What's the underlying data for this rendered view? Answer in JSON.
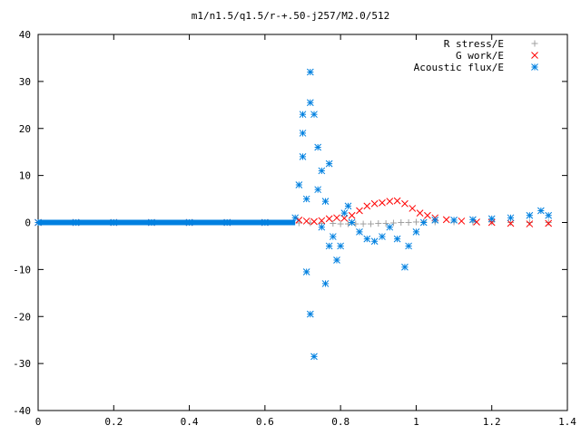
{
  "chart_data": {
    "type": "scatter",
    "title": "m1/n1.5/q1.5/r-+.50-j257/M2.0/512",
    "xlabel": "",
    "ylabel": "",
    "xlim": [
      0,
      1.4
    ],
    "ylim": [
      -40,
      40
    ],
    "x_ticks": [
      0,
      0.2,
      0.4,
      0.6,
      0.8,
      1,
      1.2,
      1.4
    ],
    "x_tick_labels": [
      "0",
      "0.2",
      "0.4",
      "0.6",
      "0.8",
      "1",
      "1.2",
      "1.4"
    ],
    "y_ticks": [
      -40,
      -30,
      -20,
      -10,
      0,
      10,
      20,
      30,
      40
    ],
    "y_tick_labels": [
      "-40",
      "-30",
      "-20",
      "-10",
      "0",
      "10",
      "20",
      "30",
      "40"
    ],
    "grid": false,
    "legend_position": "top-right",
    "series": [
      {
        "name": "R stress/E",
        "marker": "plus",
        "color": "#a0a0a0",
        "x": [
          0.0,
          0.1,
          0.2,
          0.3,
          0.4,
          0.5,
          0.6,
          0.69,
          0.72,
          0.75,
          0.78,
          0.8,
          0.82,
          0.84,
          0.86,
          0.88,
          0.9,
          0.92,
          0.94,
          0.96,
          0.98,
          1.0,
          1.02,
          1.05,
          1.1,
          1.15,
          1.2,
          1.25,
          1.3,
          1.35
        ],
        "y": [
          0,
          0,
          0,
          0,
          0,
          0,
          0,
          -0.1,
          -0.1,
          -0.2,
          -0.2,
          -0.3,
          -0.3,
          -0.3,
          -0.3,
          -0.3,
          -0.2,
          -0.2,
          -0.1,
          0.0,
          0.0,
          0.1,
          0.1,
          0.1,
          0.1,
          0.1,
          0.1,
          0.0,
          0.0,
          0.0
        ]
      },
      {
        "name": "G work/E",
        "marker": "cross",
        "color": "#ff0000",
        "x": [
          0.0,
          0.1,
          0.2,
          0.3,
          0.4,
          0.5,
          0.6,
          0.69,
          0.71,
          0.73,
          0.75,
          0.77,
          0.79,
          0.81,
          0.83,
          0.85,
          0.87,
          0.89,
          0.91,
          0.93,
          0.95,
          0.97,
          0.99,
          1.01,
          1.03,
          1.05,
          1.08,
          1.12,
          1.16,
          1.2,
          1.25,
          1.3,
          1.35
        ],
        "y": [
          0,
          0,
          0,
          0,
          0,
          0,
          0,
          0.5,
          0.3,
          0.2,
          0.4,
          0.8,
          1.0,
          0.9,
          1.5,
          2.5,
          3.5,
          4.0,
          4.2,
          4.5,
          4.6,
          4.0,
          3.0,
          2.0,
          1.5,
          1.0,
          0.6,
          0.3,
          0.1,
          0.0,
          -0.2,
          -0.3,
          -0.2
        ]
      },
      {
        "name": "Acoustic flux/E",
        "marker": "star",
        "color": "#0080e0",
        "x": [
          0.0,
          0.1,
          0.2,
          0.3,
          0.4,
          0.5,
          0.6,
          0.68,
          0.69,
          0.7,
          0.7,
          0.7,
          0.71,
          0.71,
          0.72,
          0.72,
          0.72,
          0.73,
          0.73,
          0.74,
          0.74,
          0.75,
          0.75,
          0.76,
          0.76,
          0.77,
          0.77,
          0.78,
          0.79,
          0.8,
          0.81,
          0.82,
          0.83,
          0.85,
          0.87,
          0.89,
          0.91,
          0.93,
          0.95,
          0.97,
          0.98,
          1.0,
          1.02,
          1.05,
          1.1,
          1.15,
          1.2,
          1.25,
          1.3,
          1.33,
          1.35
        ],
        "y": [
          0,
          0,
          0,
          0,
          0,
          0,
          0,
          1.0,
          8.0,
          23.0,
          19.0,
          14.0,
          -10.5,
          5.0,
          32.0,
          25.5,
          -19.5,
          23.0,
          -28.5,
          16.0,
          7.0,
          11.0,
          -1.0,
          -13.0,
          4.5,
          12.5,
          -5.0,
          -3.0,
          -8.0,
          -5.0,
          2.0,
          3.5,
          0.0,
          -2.0,
          -3.5,
          -4.0,
          -3.0,
          -1.0,
          -3.5,
          -9.5,
          -5.0,
          -2.0,
          0.0,
          0.5,
          0.5,
          0.6,
          0.8,
          1.0,
          1.5,
          2.5,
          1.5
        ]
      }
    ]
  }
}
